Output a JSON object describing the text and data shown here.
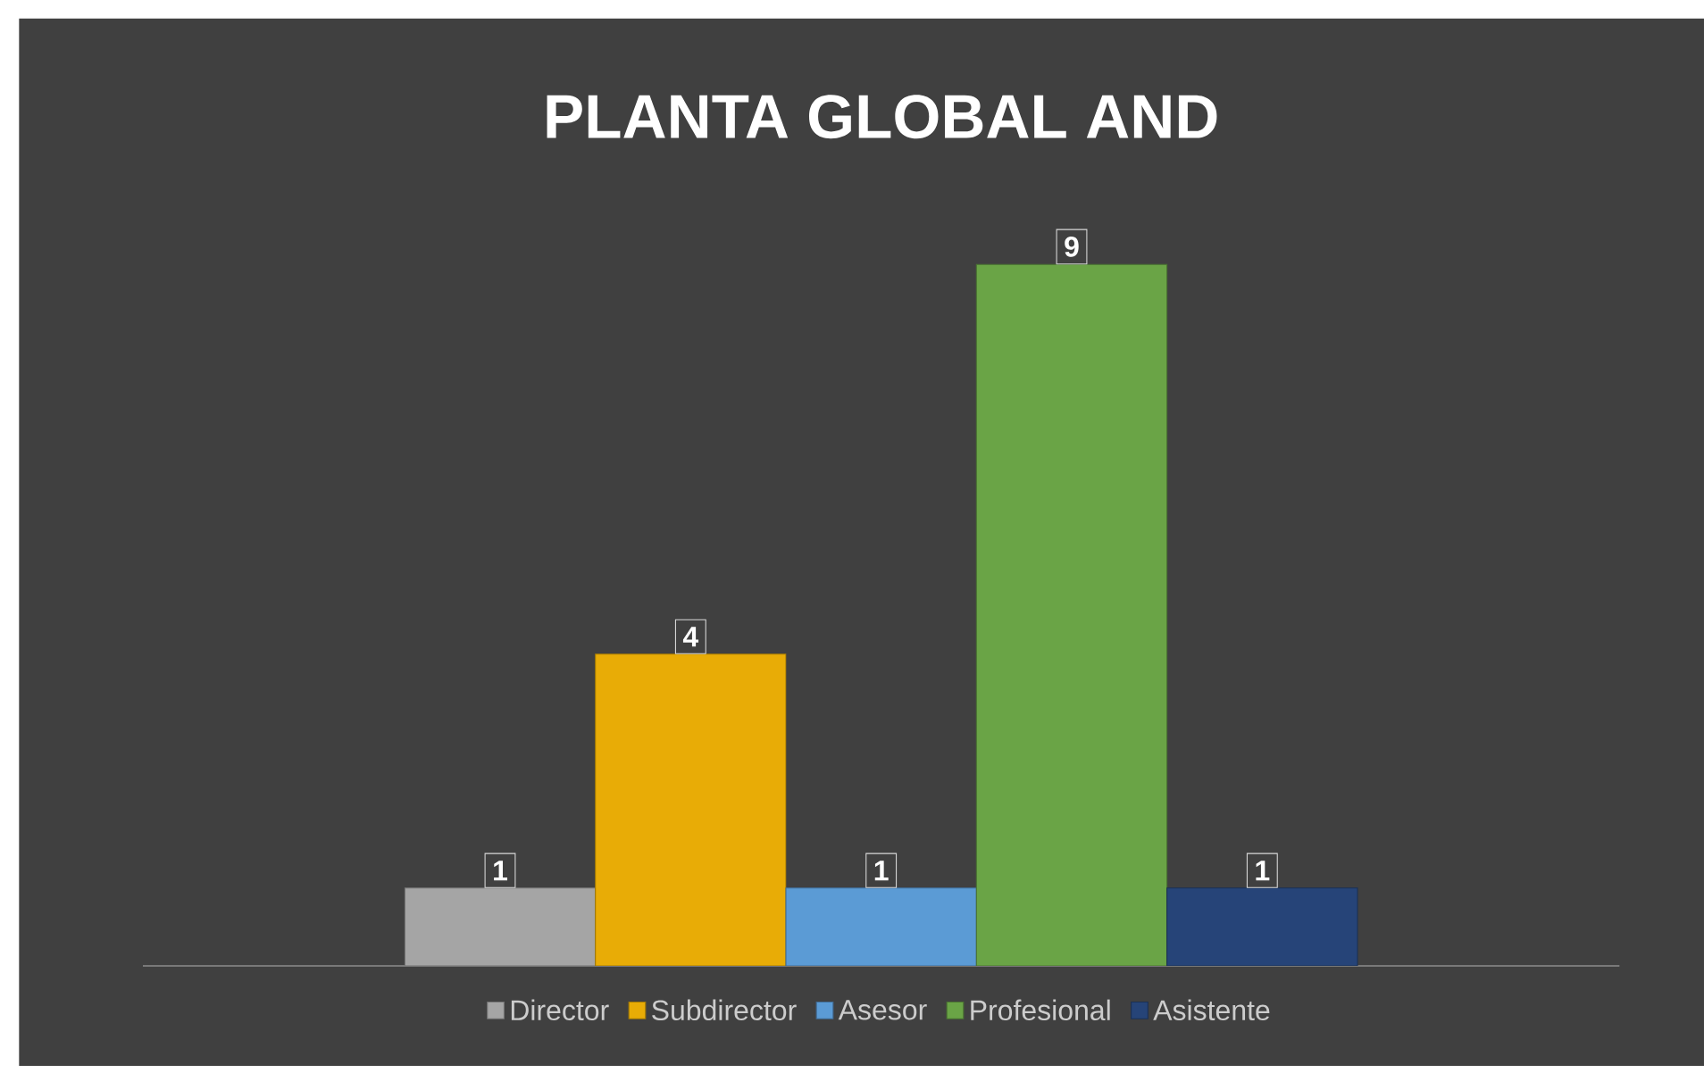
{
  "chart_data": {
    "type": "bar",
    "title": "PLANTA GLOBAL AND",
    "categories": [
      null
    ],
    "series": [
      {
        "name": "Director",
        "color": "#a5a5a5",
        "values": [
          1
        ]
      },
      {
        "name": "Subdirector",
        "color": "#e8ac06",
        "values": [
          4
        ]
      },
      {
        "name": "Asesor",
        "color": "#5b9bd5",
        "values": [
          1
        ]
      },
      {
        "name": "Profesional",
        "color": "#6aa446",
        "values": [
          9
        ]
      },
      {
        "name": "Asistente",
        "color": "#264478",
        "values": [
          1
        ]
      }
    ],
    "data_labels": true,
    "legend": "bottom"
  }
}
